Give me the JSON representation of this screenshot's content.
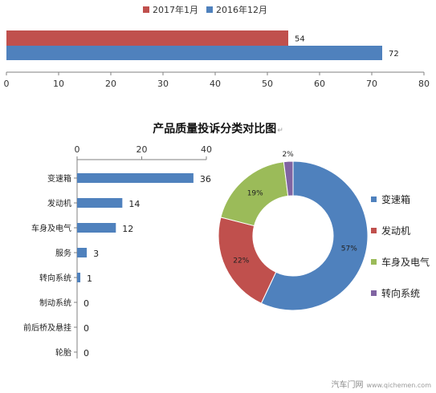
{
  "chart_data": [
    {
      "type": "bar",
      "orientation": "horizontal",
      "series": [
        {
          "name": "2017年1月",
          "values": [
            54
          ],
          "color": "#c0504d"
        },
        {
          "name": "2016年12月",
          "values": [
            72
          ],
          "color": "#4f81bd"
        }
      ],
      "xlim": [
        0,
        80
      ],
      "xticks": [
        0,
        10,
        20,
        30,
        40,
        50,
        60,
        70,
        80
      ],
      "legend": "top-center",
      "grid": false
    },
    {
      "type": "bar",
      "orientation": "horizontal",
      "categories": [
        "变速箱",
        "发动机",
        "车身及电气",
        "服务",
        "转向系统",
        "制动系统",
        "前后桥及悬挂",
        "轮胎"
      ],
      "values": [
        36,
        14,
        12,
        3,
        1,
        0,
        0,
        0
      ],
      "xlim": [
        0,
        40
      ],
      "xticks": [
        0,
        20,
        40
      ],
      "xaxis_position": "top",
      "color": "#4f81bd",
      "grid": false
    },
    {
      "type": "pie",
      "donut": true,
      "labels": [
        "变速箱",
        "发动机",
        "车身及电气",
        "转向系统"
      ],
      "values": [
        57,
        22,
        19,
        2
      ],
      "value_labels": [
        "57%",
        "22%",
        "19%",
        "2%"
      ],
      "colors": [
        "#4f81bd",
        "#c0504d",
        "#9bbb59",
        "#8064a2"
      ],
      "legend": "right"
    }
  ],
  "title": "产品质量投诉分类对比图",
  "title_mark": "↵",
  "watermark": {
    "name": "汽车门网",
    "url": "www.qichemen.com"
  }
}
